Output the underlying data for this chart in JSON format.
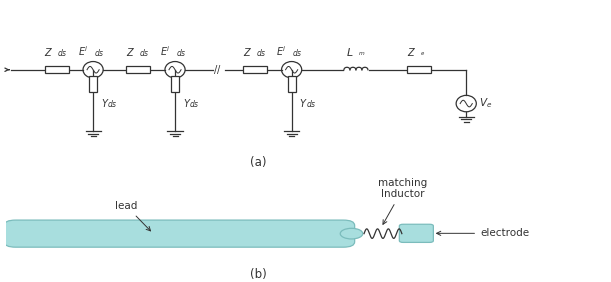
{
  "fig_width": 6.11,
  "fig_height": 2.82,
  "dpi": 100,
  "bg_color": "#ffffff",
  "line_color": "#333333",
  "lead_color": "#a8dede",
  "lead_edge_color": "#7bbcbc",
  "electrode_color": "#a8dede",
  "electrode_edge_color": "#7bbcbc",
  "label_a": "(a)",
  "label_b": "(b)",
  "label_lead": "lead",
  "label_inductor": "matching\nInductor",
  "label_electrode": "electrode"
}
